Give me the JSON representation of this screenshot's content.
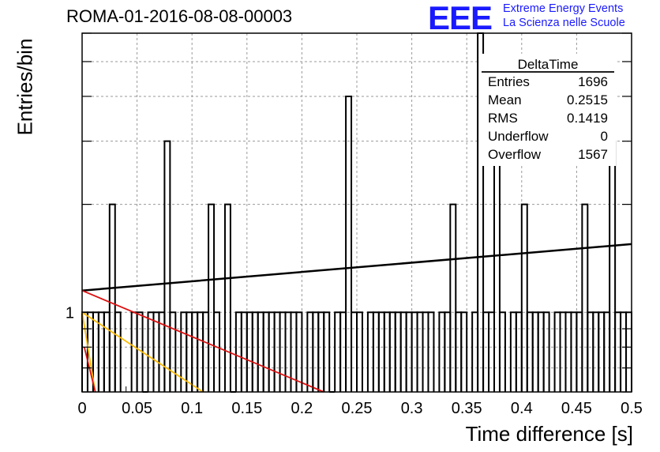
{
  "header": {
    "title": "ROMA-01-2016-08-08-00003",
    "logo_text": "EEE",
    "logo_line1": "Extreme Energy Events",
    "logo_line2": "La Scienza nelle Scuole"
  },
  "colors": {
    "histogram": "#000000",
    "black_fit": "#000000",
    "red_fit": "#dd1111",
    "orange_fit": "#ffbb00",
    "logo": "#1a1aff"
  },
  "chart_data": {
    "type": "bar",
    "title": "ROMA-01-2016-08-08-00003",
    "xlabel": "Time difference [s]",
    "ylabel": "Entries/bin",
    "xlim": [
      0,
      0.5
    ],
    "ylim": [
      0.6,
      6
    ],
    "y_log_scale": true,
    "grid": true,
    "x_ticks": [
      0,
      0.05,
      0.1,
      0.15,
      0.2,
      0.25,
      0.3,
      0.35,
      0.4,
      0.45,
      0.5
    ],
    "x_tick_labels": [
      "0",
      "0.05",
      "0.1",
      "0.15",
      "0.2",
      "0.25",
      "0.3",
      "0.35",
      "0.4",
      "0.45",
      "0.5"
    ],
    "y_tick_labels": [
      {
        "value": 1,
        "label": "1"
      }
    ],
    "bin_width": 0.005,
    "bins": [
      [
        0.0,
        1
      ],
      [
        0.005,
        1
      ],
      [
        0.01,
        1
      ],
      [
        0.015,
        1
      ],
      [
        0.02,
        1
      ],
      [
        0.025,
        2
      ],
      [
        0.03,
        1
      ],
      [
        0.045,
        1
      ],
      [
        0.05,
        1
      ],
      [
        0.055,
        0
      ],
      [
        0.06,
        1
      ],
      [
        0.065,
        1
      ],
      [
        0.07,
        1
      ],
      [
        0.075,
        3
      ],
      [
        0.08,
        1
      ],
      [
        0.09,
        1
      ],
      [
        0.095,
        1
      ],
      [
        0.1,
        1
      ],
      [
        0.105,
        1
      ],
      [
        0.11,
        1
      ],
      [
        0.115,
        2
      ],
      [
        0.12,
        1
      ],
      [
        0.13,
        2
      ],
      [
        0.135,
        0
      ],
      [
        0.14,
        1
      ],
      [
        0.145,
        1
      ],
      [
        0.15,
        1
      ],
      [
        0.155,
        1
      ],
      [
        0.16,
        1
      ],
      [
        0.165,
        1
      ],
      [
        0.17,
        1
      ],
      [
        0.175,
        1
      ],
      [
        0.18,
        1
      ],
      [
        0.185,
        1
      ],
      [
        0.19,
        1
      ],
      [
        0.195,
        1
      ],
      [
        0.205,
        1
      ],
      [
        0.21,
        1
      ],
      [
        0.215,
        1
      ],
      [
        0.22,
        1
      ],
      [
        0.225,
        0
      ],
      [
        0.23,
        1
      ],
      [
        0.235,
        1
      ],
      [
        0.24,
        4
      ],
      [
        0.245,
        1
      ],
      [
        0.25,
        1
      ],
      [
        0.26,
        1
      ],
      [
        0.265,
        1
      ],
      [
        0.27,
        1
      ],
      [
        0.275,
        1
      ],
      [
        0.28,
        1
      ],
      [
        0.285,
        1
      ],
      [
        0.29,
        1
      ],
      [
        0.295,
        1
      ],
      [
        0.3,
        1
      ],
      [
        0.305,
        1
      ],
      [
        0.31,
        1
      ],
      [
        0.315,
        1
      ],
      [
        0.325,
        1
      ],
      [
        0.33,
        1
      ],
      [
        0.335,
        2
      ],
      [
        0.34,
        1
      ],
      [
        0.345,
        1
      ],
      [
        0.355,
        1
      ],
      [
        0.36,
        6
      ],
      [
        0.365,
        1
      ],
      [
        0.37,
        1
      ],
      [
        0.375,
        3
      ],
      [
        0.38,
        1
      ],
      [
        0.39,
        1
      ],
      [
        0.395,
        1
      ],
      [
        0.4,
        2
      ],
      [
        0.405,
        1
      ],
      [
        0.41,
        1
      ],
      [
        0.415,
        1
      ],
      [
        0.42,
        1
      ],
      [
        0.43,
        1
      ],
      [
        0.435,
        1
      ],
      [
        0.44,
        1
      ],
      [
        0.445,
        1
      ],
      [
        0.45,
        1
      ],
      [
        0.455,
        2
      ],
      [
        0.46,
        1
      ],
      [
        0.465,
        1
      ],
      [
        0.47,
        1
      ],
      [
        0.475,
        1
      ],
      [
        0.48,
        3
      ],
      [
        0.485,
        1
      ],
      [
        0.49,
        1
      ],
      [
        0.495,
        1
      ]
    ],
    "fits": [
      {
        "color": "#000000",
        "points": [
          [
            0,
            1.15
          ],
          [
            0.5,
            1.55
          ]
        ]
      },
      {
        "color": "#dd1111",
        "points": [
          [
            0,
            1.15
          ],
          [
            0.22,
            0.6
          ]
        ]
      },
      {
        "color": "#ffbb00",
        "points": [
          [
            0,
            1.0
          ],
          [
            0.11,
            0.6
          ]
        ]
      },
      {
        "color": "#ffbb00",
        "points": [
          [
            0,
            1.0
          ],
          [
            0.012,
            0.6
          ]
        ]
      },
      {
        "color": "#dd1111",
        "points": [
          [
            0.002,
            0.8
          ],
          [
            0.012,
            0.6
          ]
        ]
      }
    ],
    "stats": {
      "name": "DeltaTime",
      "entries_label": "Entries",
      "entries": "1696",
      "mean_label": "Mean",
      "mean": "0.2515",
      "rms_label": "RMS",
      "rms": "0.1419",
      "underflow_label": "Underflow",
      "underflow": "0",
      "overflow_label": "Overflow",
      "overflow": "1567"
    }
  }
}
